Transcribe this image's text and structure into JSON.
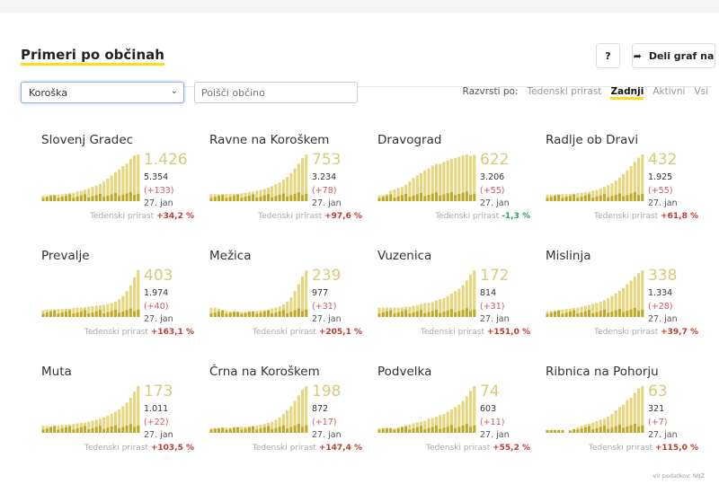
{
  "header": {
    "title": "Primeri po občinah",
    "help_label": "?",
    "share_label": "Deli graf na"
  },
  "filters": {
    "region": "Koroška",
    "search_placeholder": "Poišči občino"
  },
  "sort": {
    "label": "Razvrsti po:",
    "options": [
      "Tedenski prirast",
      "Zadnji",
      "Aktivni",
      "Vsi"
    ],
    "active": "Zadnji"
  },
  "growth_label": "Tedenski prirast",
  "municipalities": [
    {
      "name": "Slovenj Gradec",
      "active": "1.426",
      "total": "5.354",
      "increase": "(+133)",
      "date": "27. jan",
      "growth": "+34,2 %",
      "trend": [
        0.12,
        0.12,
        0.13,
        0.13,
        0.14,
        0.15,
        0.16,
        0.17,
        0.18,
        0.2,
        0.22,
        0.24,
        0.27,
        0.3,
        0.33,
        0.37,
        0.42,
        0.48,
        0.55,
        0.62,
        0.68,
        0.75,
        0.8,
        0.9,
        0.98,
        1.0
      ]
    },
    {
      "name": "Ravne na Koroškem",
      "active": "753",
      "total": "3.234",
      "increase": "(+78)",
      "date": "27. jan",
      "growth": "+97,6 %",
      "trend": [
        0.15,
        0.15,
        0.15,
        0.15,
        0.15,
        0.15,
        0.16,
        0.16,
        0.17,
        0.18,
        0.19,
        0.2,
        0.22,
        0.24,
        0.26,
        0.29,
        0.32,
        0.36,
        0.4,
        0.46,
        0.52,
        0.6,
        0.7,
        0.8,
        0.92,
        1.0
      ]
    },
    {
      "name": "Dravograd",
      "active": "622",
      "total": "3.206",
      "increase": "(+55)",
      "date": "27. jan",
      "growth": "-1,3 %",
      "trend": [
        0.12,
        0.13,
        0.15,
        0.22,
        0.25,
        0.28,
        0.3,
        0.35,
        0.42,
        0.5,
        0.55,
        0.6,
        0.66,
        0.7,
        0.76,
        0.8,
        0.8,
        0.84,
        0.87,
        0.9,
        0.92,
        0.95,
        0.98,
        1.0,
        0.97,
        0.99
      ]
    },
    {
      "name": "Radlje ob Dravi",
      "active": "432",
      "total": "1.925",
      "increase": "(+55)",
      "date": "27. jan",
      "growth": "+61,8 %",
      "trend": [
        0.14,
        0.14,
        0.14,
        0.14,
        0.15,
        0.15,
        0.15,
        0.16,
        0.17,
        0.18,
        0.19,
        0.2,
        0.22,
        0.24,
        0.27,
        0.3,
        0.34,
        0.38,
        0.44,
        0.5,
        0.58,
        0.66,
        0.75,
        0.84,
        0.93,
        1.0
      ]
    },
    {
      "name": "Prevalje",
      "active": "403",
      "total": "1.974",
      "increase": "(+40)",
      "date": "27. jan",
      "growth": "+163,1 %",
      "trend": [
        0.14,
        0.15,
        0.16,
        0.16,
        0.17,
        0.17,
        0.18,
        0.18,
        0.19,
        0.2,
        0.2,
        0.21,
        0.22,
        0.23,
        0.24,
        0.25,
        0.26,
        0.28,
        0.3,
        0.33,
        0.38,
        0.45,
        0.55,
        0.68,
        0.85,
        1.0
      ]
    },
    {
      "name": "Mežica",
      "active": "239",
      "total": "977",
      "increase": "(+31)",
      "date": "27. jan",
      "growth": "+205,1 %",
      "trend": [
        0.2,
        0.2,
        0.18,
        0.15,
        0.13,
        0.12,
        0.12,
        0.11,
        0.11,
        0.11,
        0.12,
        0.12,
        0.13,
        0.14,
        0.15,
        0.16,
        0.18,
        0.2,
        0.23,
        0.27,
        0.33,
        0.42,
        0.55,
        0.7,
        0.87,
        1.0
      ]
    },
    {
      "name": "Vuzenica",
      "active": "172",
      "total": "814",
      "increase": "(+31)",
      "date": "27. jan",
      "growth": "+151,0 %",
      "trend": [
        0.2,
        0.2,
        0.2,
        0.2,
        0.2,
        0.2,
        0.2,
        0.22,
        0.22,
        0.24,
        0.26,
        0.28,
        0.3,
        0.3,
        0.32,
        0.35,
        0.38,
        0.4,
        0.45,
        0.5,
        0.55,
        0.6,
        0.68,
        0.78,
        0.9,
        1.0
      ]
    },
    {
      "name": "Mislinja",
      "active": "338",
      "total": "1.334",
      "increase": "(+28)",
      "date": "27. jan",
      "growth": "+39,7 %",
      "trend": [
        0.12,
        0.13,
        0.14,
        0.15,
        0.16,
        0.17,
        0.18,
        0.19,
        0.2,
        0.22,
        0.24,
        0.26,
        0.28,
        0.3,
        0.33,
        0.36,
        0.4,
        0.45,
        0.5,
        0.56,
        0.62,
        0.7,
        0.78,
        0.86,
        0.94,
        1.0
      ]
    },
    {
      "name": "Muta",
      "active": "173",
      "total": "1.011",
      "increase": "(+22)",
      "date": "27. jan",
      "growth": "+103,5 %",
      "trend": [
        0.15,
        0.15,
        0.15,
        0.16,
        0.16,
        0.17,
        0.17,
        0.18,
        0.19,
        0.2,
        0.21,
        0.22,
        0.24,
        0.26,
        0.28,
        0.3,
        0.33,
        0.36,
        0.4,
        0.45,
        0.5,
        0.57,
        0.65,
        0.75,
        0.88,
        1.0
      ]
    },
    {
      "name": "Črna na Koroškem",
      "active": "198",
      "total": "872",
      "increase": "(+17)",
      "date": "27. jan",
      "growth": "+147,4 %",
      "trend": [
        0.1,
        0.1,
        0.1,
        0.11,
        0.11,
        0.11,
        0.12,
        0.12,
        0.13,
        0.13,
        0.14,
        0.15,
        0.16,
        0.17,
        0.19,
        0.21,
        0.24,
        0.28,
        0.33,
        0.4,
        0.48,
        0.57,
        0.68,
        0.8,
        0.92,
        1.0
      ]
    },
    {
      "name": "Podvelka",
      "active": "74",
      "total": "603",
      "increase": "(+11)",
      "date": "27. jan",
      "growth": "+55,2 %",
      "trend": [
        0.1,
        0.1,
        0.1,
        0.1,
        0.1,
        0.12,
        0.14,
        0.16,
        0.18,
        0.2,
        0.22,
        0.24,
        0.26,
        0.3,
        0.32,
        0.34,
        0.38,
        0.4,
        0.45,
        0.5,
        0.55,
        0.6,
        0.68,
        0.78,
        0.9,
        1.0
      ]
    },
    {
      "name": "Ribnica na Pohorju",
      "active": "63",
      "total": "321",
      "increase": "(+7)",
      "date": "27. jan",
      "growth": "+115,0 %",
      "trend": [
        0.06,
        0.06,
        0.06,
        0.06,
        0.06,
        0.0,
        0.05,
        0.08,
        0.12,
        0.15,
        0.18,
        0.2,
        0.22,
        0.25,
        0.28,
        0.3,
        0.35,
        0.4,
        0.48,
        0.55,
        0.6,
        0.7,
        0.75,
        0.85,
        0.95,
        1.0
      ]
    }
  ],
  "source": "vir podatkov: NIJZ"
}
